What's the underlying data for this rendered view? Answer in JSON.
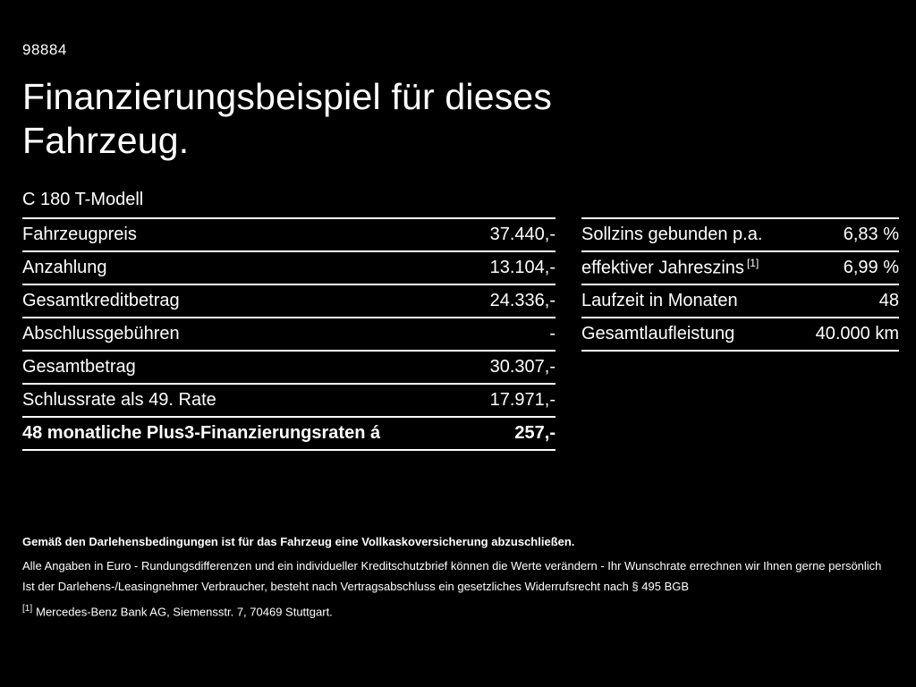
{
  "colors": {
    "background": "#000000",
    "text": "#ffffff"
  },
  "page": {
    "code": "98884",
    "title": "Finanzierungsbeispiel für dieses\nFahrzeug.",
    "model": "C 180 T-Modell"
  },
  "finance_table": {
    "rows": [
      {
        "label": "Fahrzeugpreis",
        "value": "37.440,-"
      },
      {
        "label": "Anzahlung",
        "value": "13.104,-"
      },
      {
        "label": "Gesamtkreditbetrag",
        "value": "24.336,-"
      },
      {
        "label": "Abschlussgebühren",
        "value": "-"
      },
      {
        "label": "Gesamtbetrag",
        "value": "30.307,-"
      },
      {
        "label": "Schlussrate als 49. Rate",
        "value": "17.971,-"
      },
      {
        "label": "48 monatliche Plus3-Finanzierungsraten á",
        "value": "257,-"
      }
    ]
  },
  "rates_table": {
    "rows": [
      {
        "label": "Sollzins gebunden p.a.",
        "value": "6,83 %"
      },
      {
        "label": "effektiver Jahreszins",
        "sup": "[1]",
        "value": "6,99 %"
      },
      {
        "label": "Laufzeit in Monaten",
        "value": "48"
      },
      {
        "label": "Gesamtlaufleistung",
        "value": "40.000 km"
      }
    ]
  },
  "notes": {
    "insurance": "Gemäß den Darlehensbedingungen ist für das Fahrzeug eine Vollkaskoversicherung abzuschließen.",
    "disclaimer1": "Alle Angaben in Euro - Rundungsdifferenzen und ein individueller Kreditschutzbrief können die Werte verändern - Ihr Wunschrate errechnen wir Ihnen gerne persönlich",
    "disclaimer2": "Ist der Darlehens-/Leasingnehmer Verbraucher, besteht nach Vertragsabschluss ein gesetzliches Widerrufsrecht nach § 495 BGB",
    "footnote_marker": "[1]",
    "footnote_text": "Mercedes-Benz Bank AG, Siemensstr. 7, 70469 Stuttgart."
  }
}
